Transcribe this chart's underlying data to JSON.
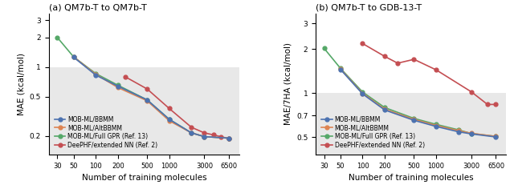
{
  "panel_a": {
    "title": "(a) QM7b-T to QM7b-T",
    "ylabel": "MAE (kcal/mol)",
    "xlabel": "Number of training molecules",
    "xticks": [
      30,
      50,
      100,
      200,
      500,
      1000,
      3000,
      6500
    ],
    "ylim": [
      0.13,
      3.5
    ],
    "yticks": [
      0.2,
      0.5,
      1.0,
      2.0,
      3.0
    ],
    "ytick_labels": [
      "0.2",
      "0.5",
      "1",
      "2",
      "3"
    ],
    "hline": 1.0,
    "series": {
      "BBMM": {
        "x": [
          50,
          100,
          200,
          500,
          1000,
          2000,
          3000,
          6500
        ],
        "y": [
          1.26,
          0.83,
          0.64,
          0.465,
          0.295,
          0.215,
          0.197,
          0.19
        ],
        "color": "#4C72B0",
        "label": "MOB-ML/BBMM"
      },
      "AltBBMM": {
        "x": [
          50,
          100,
          200,
          500,
          1000,
          2000,
          3000,
          6500
        ],
        "y": [
          1.27,
          0.845,
          0.62,
          0.455,
          0.285,
          0.215,
          0.197,
          0.19
        ],
        "color": "#DD8452",
        "label": "MOB-ML/AltBBMM"
      },
      "FullGPR": {
        "x": [
          30,
          50,
          100,
          200,
          500,
          1000,
          2000,
          3000,
          6500
        ],
        "y": [
          2.0,
          1.27,
          0.86,
          0.655,
          0.465,
          0.295,
          0.215,
          0.197,
          0.19
        ],
        "color": "#55A868",
        "label": "MOB-ML/Full GPR (Ref. 13)"
      },
      "DeePHF": {
        "x": [
          250,
          500,
          1000,
          2000,
          3000,
          4000,
          5000,
          6500
        ],
        "y": [
          0.8,
          0.6,
          0.38,
          0.245,
          0.215,
          0.205,
          0.197,
          0.188
        ],
        "color": "#C44E52",
        "label": "DeePHF/extended NN (Ref. 2)"
      }
    }
  },
  "panel_b": {
    "title": "(b) QM7b-T to GDB-13-T",
    "ylabel": "MAE/7HA (kcal/mol)",
    "xlabel": "Number of training molecules",
    "xticks": [
      30,
      50,
      100,
      200,
      500,
      1000,
      3000,
      6500
    ],
    "ylim": [
      0.38,
      3.5
    ],
    "yticks": [
      0.5,
      0.7,
      1.0,
      2.0,
      3.0
    ],
    "ytick_labels": [
      "0.5",
      "0.7",
      "1",
      "2",
      "3"
    ],
    "hline": 1.0,
    "series": {
      "BBMM": {
        "x": [
          50,
          100,
          200,
          500,
          1000,
          2000,
          3000,
          6500
        ],
        "y": [
          1.45,
          0.985,
          0.765,
          0.65,
          0.59,
          0.543,
          0.525,
          0.5
        ],
        "color": "#4C72B0",
        "label": "MOB-ML/BBMM"
      },
      "AltBBMM": {
        "x": [
          50,
          100,
          200,
          500,
          1000,
          2000,
          3000,
          6500
        ],
        "y": [
          1.46,
          0.995,
          0.775,
          0.66,
          0.6,
          0.553,
          0.53,
          0.505
        ],
        "color": "#DD8452",
        "label": "MOB-ML/AltBBMM"
      },
      "FullGPR": {
        "x": [
          30,
          50,
          100,
          200,
          500,
          1000,
          2000,
          3000,
          6500
        ],
        "y": [
          2.02,
          1.475,
          1.015,
          0.795,
          0.67,
          0.61,
          0.56,
          0.528,
          0.505
        ],
        "color": "#55A868",
        "label": "MOB-ML/Full GPR (Ref. 13)"
      },
      "DeePHF": {
        "x": [
          100,
          200,
          300,
          500,
          1000,
          3000,
          5000,
          6500
        ],
        "y": [
          2.18,
          1.78,
          1.6,
          1.7,
          1.44,
          1.02,
          0.835,
          0.835
        ],
        "color": "#C44E52",
        "label": "DeePHF/extended NN (Ref. 2)"
      }
    }
  },
  "background_color": "#e8e8e8",
  "marker": "o",
  "markersize": 3.5,
  "linewidth": 1.2
}
